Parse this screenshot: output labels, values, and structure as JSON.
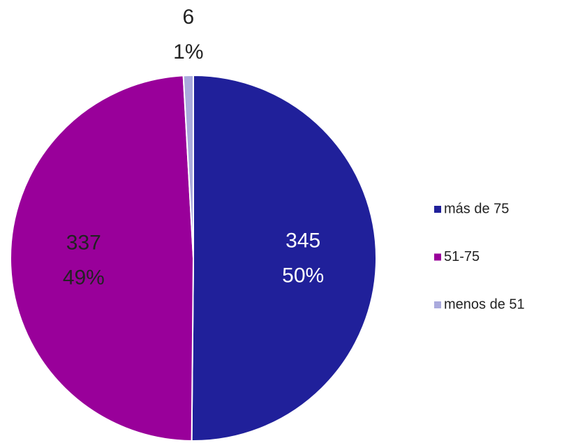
{
  "chart_data": {
    "type": "pie",
    "categories": [
      "más de 75",
      "51-75",
      "menos de 51"
    ],
    "values": [
      345,
      337,
      6
    ],
    "percent_labels": [
      "50%",
      "49%",
      "1%"
    ],
    "colors": [
      "#20209a",
      "#99009a",
      "#aaaadd"
    ],
    "label_colors": [
      "#ffffff",
      "#222222",
      "#222222"
    ],
    "legend": "right"
  }
}
